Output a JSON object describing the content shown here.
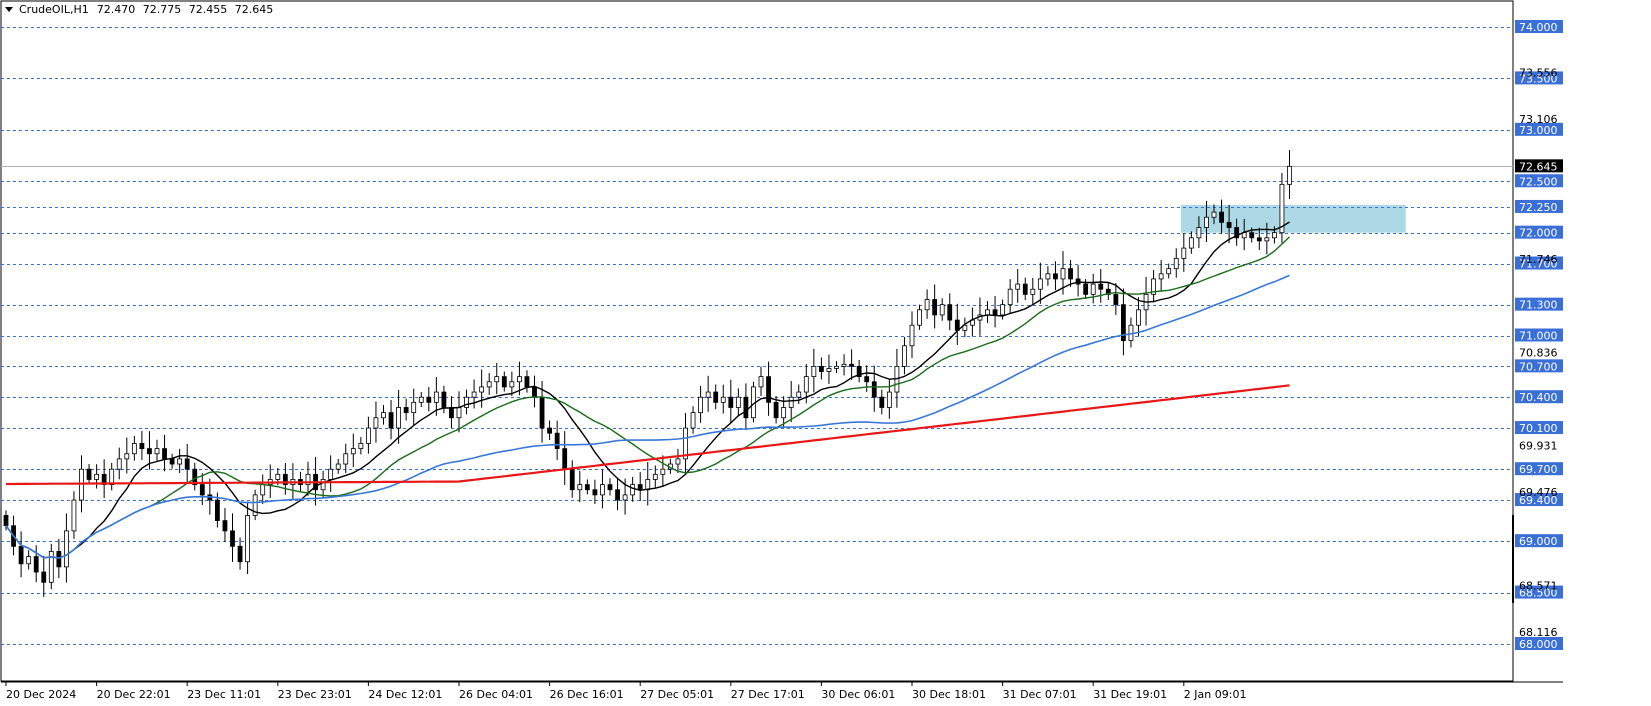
{
  "symbol_header": {
    "symbol": "CrudeOIL,H1",
    "open": "72.470",
    "high": "72.775",
    "low": "72.455",
    "close": "72.645"
  },
  "colors": {
    "up_candle_fill": "#ffffff",
    "down_candle_fill": "#000000",
    "candle_outline": "#000000",
    "level_line": "#3a6fd8",
    "level_label_bg": "#3a6fd8",
    "current_price_label_bg": "#000000",
    "zone_fill": "#add8e6",
    "ma_fast": "#000000",
    "ma_mid": "#1a6b1a",
    "ma_slow": "#3a78d8",
    "ma_long": "#e81818"
  },
  "chart_data": {
    "type": "candlestick",
    "title": "",
    "xlabel": "",
    "ylabel": "",
    "ylim": [
      67.95,
      74.15
    ],
    "grid": false,
    "price_scale_ticks": [
      "73.556",
      "73.106",
      "71.746",
      "70.836",
      "69.931",
      "69.476",
      "68.571",
      "68.116"
    ],
    "horizontal_levels": [
      74.0,
      73.5,
      73.0,
      72.5,
      72.25,
      72.0,
      71.7,
      71.3,
      71.0,
      70.7,
      70.4,
      70.1,
      69.7,
      69.4,
      69.0,
      68.5,
      68.0
    ],
    "horizontal_level_labels": [
      "74.000",
      "73.500",
      "73.000",
      "72.500",
      "72.250",
      "72.000",
      "71.700",
      "71.300",
      "71.000",
      "70.700",
      "70.400",
      "70.100",
      "69.700",
      "69.400",
      "69.000",
      "68.500",
      "68.000"
    ],
    "current_price": 72.645,
    "current_price_label": "72.645",
    "zone": {
      "from_bar": 156,
      "to_bar": 185,
      "top": 72.27,
      "bottom": 72.0
    },
    "x_tick_labels": [
      "20 Dec 2024",
      "20 Dec 22:01",
      "23 Dec 11:01",
      "23 Dec 23:01",
      "24 Dec 12:01",
      "26 Dec 04:01",
      "26 Dec 16:01",
      "27 Dec 05:01",
      "27 Dec 17:01",
      "30 Dec 06:01",
      "30 Dec 18:01",
      "31 Dec 07:01",
      "31 Dec 19:01",
      "2 Jan 09:01"
    ],
    "x_tick_bars": [
      0,
      12,
      24,
      36,
      48,
      60,
      72,
      84,
      96,
      108,
      120,
      132,
      144,
      156
    ],
    "closes": [
      69.15,
      68.95,
      68.78,
      68.85,
      68.7,
      68.6,
      68.9,
      68.75,
      69.1,
      69.4,
      69.7,
      69.6,
      69.65,
      69.55,
      69.7,
      69.8,
      69.85,
      69.95,
      69.9,
      69.85,
      69.9,
      69.8,
      69.75,
      69.8,
      69.7,
      69.55,
      69.45,
      69.4,
      69.2,
      69.1,
      68.95,
      68.8,
      69.25,
      69.45,
      69.55,
      69.6,
      69.65,
      69.55,
      69.6,
      69.55,
      69.65,
      69.5,
      69.6,
      69.7,
      69.75,
      69.85,
      69.9,
      69.95,
      70.1,
      70.2,
      70.25,
      70.1,
      70.3,
      70.25,
      70.35,
      70.4,
      70.35,
      70.45,
      70.3,
      70.2,
      70.3,
      70.4,
      70.45,
      70.5,
      70.55,
      70.6,
      70.5,
      70.55,
      70.6,
      70.5,
      70.4,
      70.1,
      70.05,
      69.9,
      69.7,
      69.5,
      69.55,
      69.5,
      69.45,
      69.55,
      69.5,
      69.4,
      69.45,
      69.55,
      69.5,
      69.6,
      69.65,
      69.7,
      69.75,
      69.8,
      70.1,
      70.25,
      70.4,
      70.45,
      70.35,
      70.4,
      70.3,
      70.4,
      70.2,
      70.5,
      70.6,
      70.35,
      70.2,
      70.3,
      70.4,
      70.45,
      70.6,
      70.7,
      70.65,
      70.68,
      70.7,
      70.72,
      70.7,
      70.6,
      70.55,
      70.4,
      70.3,
      70.45,
      70.7,
      70.9,
      71.1,
      71.25,
      71.35,
      71.2,
      71.3,
      71.15,
      71.05,
      71.1,
      71.15,
      71.2,
      71.25,
      71.2,
      71.3,
      71.45,
      71.5,
      71.4,
      71.45,
      71.55,
      71.6,
      71.55,
      71.65,
      71.55,
      71.5,
      71.4,
      71.5,
      71.45,
      71.4,
      71.3,
      70.95,
      71.1,
      71.25,
      71.4,
      71.55,
      71.6,
      71.65,
      71.75,
      71.85,
      71.95,
      72.05,
      72.15,
      72.2,
      72.1,
      72.05,
      71.95,
      72.0,
      71.95,
      71.92,
      71.95,
      72.0,
      72.47,
      72.645
    ],
    "ma_series": [
      {
        "period": 10,
        "color": "#000000"
      },
      {
        "period": 20,
        "color": "#1a6b1a"
      },
      {
        "period": 50,
        "color": "#3a78d8"
      },
      {
        "period": 200,
        "color": "#e81818"
      }
    ]
  }
}
